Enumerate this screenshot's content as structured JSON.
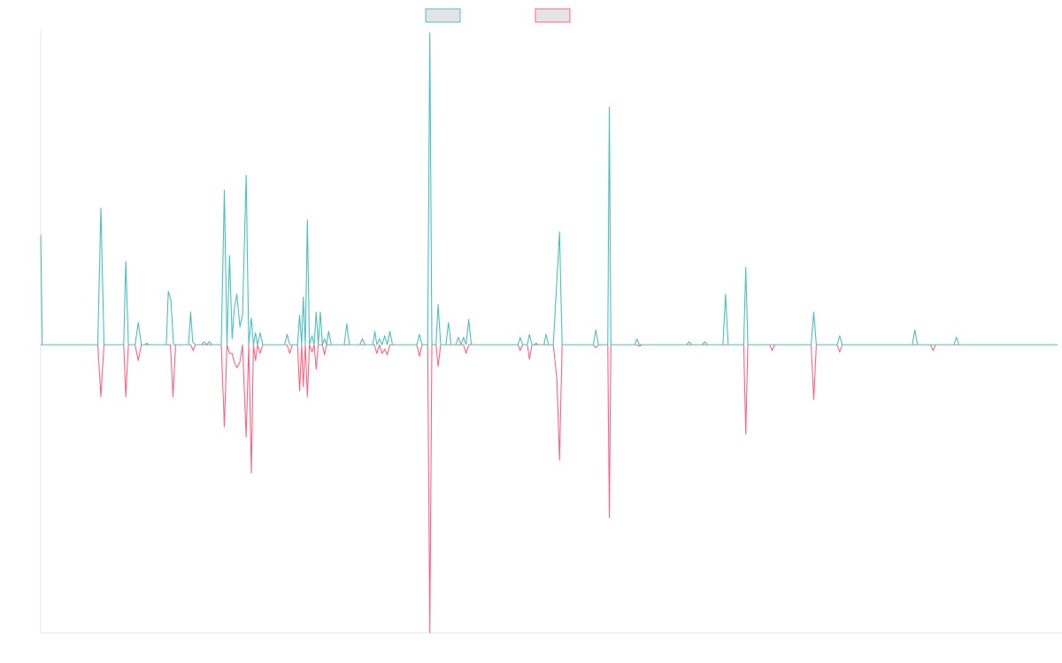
{
  "chart_data": {
    "type": "line",
    "title": "",
    "xlabel": "",
    "ylabel": "",
    "legend_position": "top-center",
    "grid": false,
    "xlim": [
      0,
      196
    ],
    "ylim": [
      -1.0,
      1.0
    ],
    "series": [
      {
        "color": "#4bc0c0",
        "fill": "#e4e4e4",
        "points": [
          [
            0,
            0.37
          ],
          [
            0.3,
            0
          ],
          [
            2.5,
            0
          ],
          [
            11,
            0
          ],
          [
            11.6,
            0.46
          ],
          [
            12.2,
            0
          ],
          [
            14,
            0
          ],
          [
            16,
            0
          ],
          [
            16.4,
            0.28
          ],
          [
            16.9,
            0
          ],
          [
            18.2,
            0
          ],
          [
            18.8,
            0.075
          ],
          [
            19.4,
            0
          ],
          [
            20.1,
            0
          ],
          [
            20.4,
            0.005
          ],
          [
            20.9,
            0
          ],
          [
            23,
            0
          ],
          [
            24.2,
            0
          ],
          [
            24.6,
            0.18
          ],
          [
            25.1,
            0.15
          ],
          [
            25.6,
            0
          ],
          [
            26.5,
            0
          ],
          [
            28.5,
            0
          ],
          [
            28.9,
            0.11
          ],
          [
            29.3,
            0.01
          ],
          [
            29.8,
            0
          ],
          [
            31,
            0
          ],
          [
            31.5,
            0.01
          ],
          [
            32,
            0
          ],
          [
            32.5,
            0.01
          ],
          [
            33,
            0
          ],
          [
            34.8,
            0
          ],
          [
            35.4,
            0.52
          ],
          [
            35.9,
            0
          ],
          [
            36.4,
            0.3
          ],
          [
            36.9,
            0.02
          ],
          [
            37.3,
            0.12
          ],
          [
            37.8,
            0.17
          ],
          [
            38.4,
            0.06
          ],
          [
            38.9,
            0.1
          ],
          [
            39.6,
            0.57
          ],
          [
            40.1,
            0
          ],
          [
            40.6,
            0.09
          ],
          [
            41,
            0
          ],
          [
            41.4,
            0.04
          ],
          [
            41.8,
            0
          ],
          [
            42.3,
            0.04
          ],
          [
            42.8,
            0
          ],
          [
            47,
            0
          ],
          [
            47.5,
            0.035
          ],
          [
            48,
            0
          ],
          [
            49.5,
            0
          ],
          [
            49.9,
            0.1
          ],
          [
            50.3,
            0
          ],
          [
            50.6,
            0.16
          ],
          [
            51,
            0
          ],
          [
            51.4,
            0.42
          ],
          [
            51.8,
            0
          ],
          [
            52.3,
            0.03
          ],
          [
            52.7,
            0
          ],
          [
            53.1,
            0.11
          ],
          [
            53.5,
            0
          ],
          [
            53.9,
            0.11
          ],
          [
            54.3,
            0
          ],
          [
            54.7,
            0.02
          ],
          [
            55.1,
            0
          ],
          [
            55.5,
            0.045
          ],
          [
            56,
            0
          ],
          [
            58.5,
            0
          ],
          [
            59,
            0.07
          ],
          [
            59.5,
            0
          ],
          [
            61.5,
            0
          ],
          [
            62,
            0.02
          ],
          [
            62.5,
            0
          ],
          [
            64,
            0
          ],
          [
            64.4,
            0.045
          ],
          [
            64.8,
            0
          ],
          [
            65.3,
            0.02
          ],
          [
            65.8,
            0
          ],
          [
            66.3,
            0.03
          ],
          [
            66.8,
            0
          ],
          [
            67.3,
            0.045
          ],
          [
            67.8,
            0
          ],
          [
            72.5,
            0
          ],
          [
            73,
            0.035
          ],
          [
            73.5,
            0
          ],
          [
            74.6,
            0
          ],
          [
            75,
            1.05
          ],
          [
            75.4,
            0
          ],
          [
            76.2,
            0
          ],
          [
            76.6,
            0.135
          ],
          [
            77.1,
            0
          ],
          [
            78.1,
            0
          ],
          [
            78.6,
            0.075
          ],
          [
            79.1,
            0
          ],
          [
            80,
            0
          ],
          [
            80.5,
            0.025
          ],
          [
            81,
            0
          ],
          [
            81.5,
            0.025
          ],
          [
            82,
            0
          ],
          [
            82.5,
            0.085
          ],
          [
            83,
            0
          ],
          [
            92,
            0
          ],
          [
            92.4,
            0.025
          ],
          [
            92.9,
            0
          ],
          [
            93.8,
            0
          ],
          [
            94.2,
            0.035
          ],
          [
            94.7,
            0
          ],
          [
            95.1,
            0
          ],
          [
            95.5,
            0.005
          ],
          [
            95.9,
            0
          ],
          [
            97,
            0
          ],
          [
            97.4,
            0.035
          ],
          [
            97.9,
            0
          ],
          [
            98.8,
            0
          ],
          [
            99.5,
            0.22
          ],
          [
            100,
            0.38
          ],
          [
            100.5,
            0
          ],
          [
            106.5,
            0
          ],
          [
            107,
            0.05
          ],
          [
            107.5,
            0
          ],
          [
            109.3,
            0
          ],
          [
            109.6,
            0.8
          ],
          [
            109.9,
            0
          ],
          [
            114.5,
            0
          ],
          [
            114.9,
            0.02
          ],
          [
            115.4,
            0
          ],
          [
            122.5,
            0
          ],
          [
            124.5,
            0
          ],
          [
            125,
            0.01
          ],
          [
            125.5,
            0
          ],
          [
            127.5,
            0
          ],
          [
            128,
            0.01
          ],
          [
            128.5,
            0
          ],
          [
            131.5,
            0
          ],
          [
            132,
            0.17
          ],
          [
            132.5,
            0
          ],
          [
            135.5,
            0
          ],
          [
            135.9,
            0.26
          ],
          [
            136.3,
            0
          ],
          [
            144,
            0
          ],
          [
            148.5,
            0
          ],
          [
            149,
            0.11
          ],
          [
            149.5,
            0
          ],
          [
            153.5,
            0
          ],
          [
            154,
            0.03
          ],
          [
            154.5,
            0
          ],
          [
            168,
            0
          ],
          [
            168.5,
            0.05
          ],
          [
            169,
            0
          ],
          [
            175,
            0
          ],
          [
            176,
            0
          ],
          [
            176.5,
            0.025
          ],
          [
            177,
            0
          ],
          [
            196,
            0
          ]
        ]
      },
      {
        "color": "#ff6384",
        "fill": "#e4e4e4",
        "points": [
          [
            0,
            0
          ],
          [
            11,
            0
          ],
          [
            11.6,
            -0.18
          ],
          [
            12.2,
            0
          ],
          [
            16,
            0
          ],
          [
            16.4,
            -0.18
          ],
          [
            16.9,
            0
          ],
          [
            18.2,
            0
          ],
          [
            18.8,
            -0.055
          ],
          [
            19.4,
            0
          ],
          [
            25,
            0
          ],
          [
            25.5,
            -0.18
          ],
          [
            26,
            0
          ],
          [
            28.9,
            0
          ],
          [
            29.4,
            -0.02
          ],
          [
            29.8,
            0
          ],
          [
            34.8,
            0
          ],
          [
            35.4,
            -0.285
          ],
          [
            35.9,
            0
          ],
          [
            36.4,
            -0.03
          ],
          [
            36.9,
            -0.03
          ],
          [
            37.3,
            -0.06
          ],
          [
            37.8,
            -0.08
          ],
          [
            38.4,
            -0.06
          ],
          [
            38.9,
            0
          ],
          [
            39.6,
            -0.32
          ],
          [
            40.1,
            0
          ],
          [
            40.6,
            -0.445
          ],
          [
            41,
            0
          ],
          [
            41.4,
            -0.055
          ],
          [
            41.8,
            0
          ],
          [
            42.3,
            -0.03
          ],
          [
            42.8,
            0
          ],
          [
            47.5,
            0
          ],
          [
            48,
            -0.03
          ],
          [
            48.5,
            0
          ],
          [
            49.5,
            0
          ],
          [
            49.9,
            -0.16
          ],
          [
            50.3,
            0
          ],
          [
            50.6,
            -0.145
          ],
          [
            51,
            0
          ],
          [
            51.4,
            -0.18
          ],
          [
            51.8,
            0
          ],
          [
            52.3,
            -0.025
          ],
          [
            52.7,
            0
          ],
          [
            53.1,
            -0.085
          ],
          [
            53.5,
            0
          ],
          [
            54.3,
            0
          ],
          [
            54.7,
            -0.035
          ],
          [
            55.1,
            0
          ],
          [
            64.3,
            0
          ],
          [
            64.8,
            -0.03
          ],
          [
            65.3,
            0
          ],
          [
            65.8,
            -0.03
          ],
          [
            66.3,
            -0.015
          ],
          [
            66.8,
            -0.035
          ],
          [
            67.3,
            0
          ],
          [
            72.5,
            0
          ],
          [
            73,
            -0.04
          ],
          [
            73.5,
            0
          ],
          [
            74.6,
            0
          ],
          [
            75,
            -1.0
          ],
          [
            75.4,
            0
          ],
          [
            76.2,
            0
          ],
          [
            76.6,
            -0.075
          ],
          [
            77.1,
            0
          ],
          [
            81.5,
            0
          ],
          [
            82,
            -0.03
          ],
          [
            82.5,
            0
          ],
          [
            92,
            0
          ],
          [
            92.4,
            -0.02
          ],
          [
            92.9,
            0
          ],
          [
            93.8,
            0
          ],
          [
            94.2,
            -0.05
          ],
          [
            94.7,
            0
          ],
          [
            98.8,
            0
          ],
          [
            99.5,
            -0.12
          ],
          [
            100,
            -0.4
          ],
          [
            100.5,
            0
          ],
          [
            106.5,
            0
          ],
          [
            107,
            -0.01
          ],
          [
            107.5,
            0
          ],
          [
            109.3,
            0
          ],
          [
            109.6,
            -0.6
          ],
          [
            109.9,
            0
          ],
          [
            114.9,
            0
          ],
          [
            115.4,
            -0.005
          ],
          [
            115.9,
            0
          ],
          [
            135.5,
            0
          ],
          [
            135.9,
            -0.31
          ],
          [
            136.3,
            0
          ],
          [
            140.5,
            0
          ],
          [
            141,
            -0.02
          ],
          [
            141.5,
            0
          ],
          [
            144,
            0
          ],
          [
            148.5,
            0
          ],
          [
            149,
            -0.19
          ],
          [
            149.5,
            0
          ],
          [
            153.5,
            0
          ],
          [
            154,
            -0.025
          ],
          [
            154.5,
            0
          ],
          [
            171.5,
            0
          ],
          [
            172,
            -0.02
          ],
          [
            172.5,
            0
          ],
          [
            196,
            0
          ]
        ]
      }
    ]
  }
}
